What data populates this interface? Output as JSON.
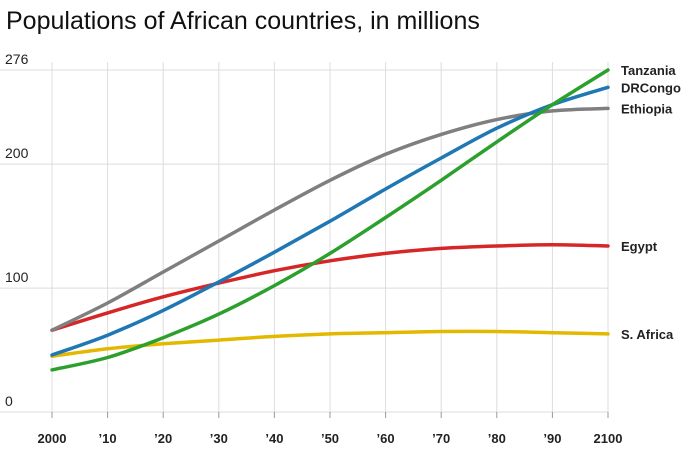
{
  "chart_data": {
    "type": "line",
    "title": "Populations of African countries, in millions",
    "xlabel": "",
    "ylabel": "",
    "x_tick_labels": [
      "2000",
      "’10",
      "’20",
      "’30",
      "’40",
      "’50",
      "’60",
      "’70",
      "’80",
      "’90",
      "2100"
    ],
    "x": [
      2000,
      2010,
      2020,
      2030,
      2040,
      2050,
      2060,
      2070,
      2080,
      2090,
      2100
    ],
    "y_ticks": [
      0,
      100,
      200,
      276
    ],
    "y_tick_labels": [
      "0",
      "100",
      "200",
      "276"
    ],
    "ylim": [
      0,
      276
    ],
    "xlim": [
      2000,
      2100
    ],
    "grid": true,
    "series": [
      {
        "name": "Tanzania",
        "color": "#2ca02c",
        "values": [
          34,
          44,
          60,
          79,
          102,
          128,
          157,
          187,
          218,
          248,
          276
        ]
      },
      {
        "name": "DRCongo",
        "color": "#1f77b4",
        "values": [
          46,
          62,
          82,
          105,
          129,
          154,
          180,
          205,
          229,
          248,
          262
        ]
      },
      {
        "name": "Ethiopia",
        "color": "#7f7f7f",
        "values": [
          66,
          88,
          113,
          138,
          163,
          187,
          208,
          224,
          236,
          243,
          245
        ]
      },
      {
        "name": "Egypt",
        "color": "#d62728",
        "values": [
          66,
          80,
          93,
          104,
          114,
          122,
          128,
          132,
          134,
          135,
          134
        ]
      },
      {
        "name": "S. Africa",
        "color": "#e3b800",
        "values": [
          45,
          51,
          55,
          58,
          61,
          63,
          64,
          65,
          65,
          64,
          63
        ]
      }
    ]
  }
}
